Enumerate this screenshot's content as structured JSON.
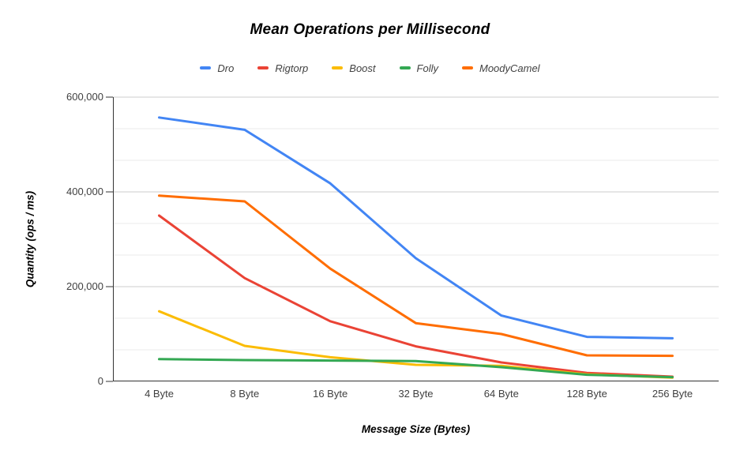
{
  "title": "Mean Operations per Millisecond",
  "chart_data": {
    "type": "line",
    "title": "Mean Operations per Millisecond",
    "xlabel": "Message Size (Bytes)",
    "ylabel": "Quantity (ops / ms)",
    "x_categories": [
      "4 Byte",
      "8 Byte",
      "16 Byte",
      "32 Byte",
      "64 Byte",
      "128 Byte",
      "256 Byte"
    ],
    "ylim": [
      0,
      600000
    ],
    "y_major_tick_interval": 200000,
    "y_minor_divisions": 3,
    "y_ticks": [
      {
        "value": 0,
        "label": "0"
      },
      {
        "value": 200000,
        "label": "200,000"
      },
      {
        "value": 400000,
        "label": "400,000"
      },
      {
        "value": 600000,
        "label": "600,000"
      }
    ],
    "grid": true,
    "legend_position": "top",
    "series": [
      {
        "name": "Dro",
        "color": "#4285F4",
        "values": [
          557000,
          531000,
          418000,
          260000,
          139000,
          94000,
          91000
        ]
      },
      {
        "name": "Rigtorp",
        "color": "#EA4335",
        "values": [
          350000,
          218000,
          127000,
          74000,
          40000,
          18000,
          10000
        ]
      },
      {
        "name": "Boost",
        "color": "#FBBC04",
        "values": [
          148000,
          75000,
          51000,
          35000,
          33000,
          15000,
          8000
        ]
      },
      {
        "name": "Folly",
        "color": "#34A853",
        "values": [
          47000,
          45000,
          44000,
          43000,
          30000,
          14000,
          9000
        ]
      },
      {
        "name": "MoodyCamel",
        "color": "#FF6D01",
        "values": [
          392000,
          380000,
          238000,
          123000,
          100000,
          55000,
          54000
        ]
      }
    ],
    "colors": {
      "axis_line": "#333333",
      "major_gridline": "#cccccc",
      "minor_gridline": "#ebebeb"
    }
  }
}
